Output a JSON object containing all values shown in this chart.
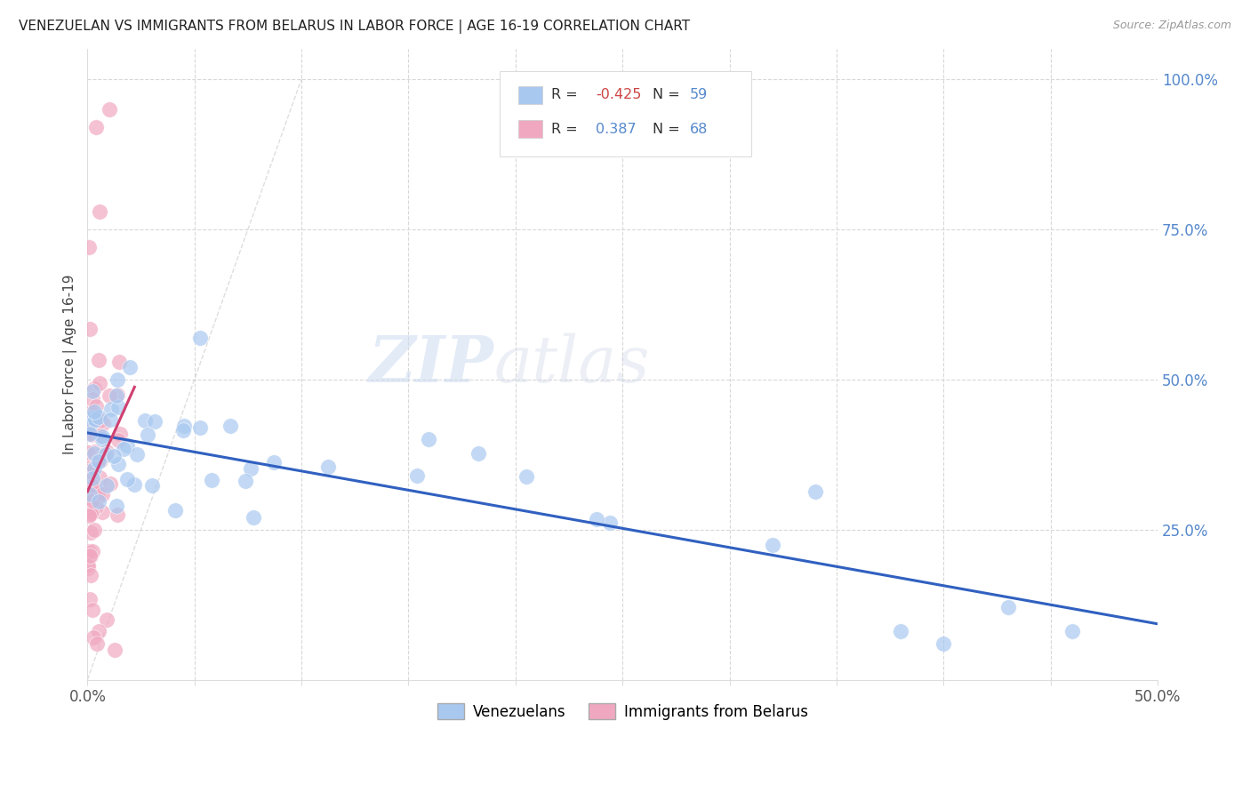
{
  "title": "VENEZUELAN VS IMMIGRANTS FROM BELARUS IN LABOR FORCE | AGE 16-19 CORRELATION CHART",
  "source": "Source: ZipAtlas.com",
  "ylabel": "In Labor Force | Age 16-19",
  "venezuelans_color": "#a8c8f0",
  "belarus_color": "#f0a8c0",
  "trendline_venezuelan_color": "#3060c0",
  "trendline_belarus_color": "#d04070",
  "diagonal_color": "#c8c8c8",
  "watermark_zip": "ZIP",
  "watermark_atlas": "atlas",
  "xlim": [
    0.0,
    0.5
  ],
  "ylim": [
    0.0,
    1.05
  ],
  "background_color": "#ffffff",
  "grid_color": "#d8d8d8",
  "ytick_color": "#5588cc",
  "ven_R": "-0.425",
  "ven_N": "59",
  "bel_R": "0.387",
  "bel_N": "68",
  "legend_R_color": "#cc4444",
  "legend_N_color": "#5588cc"
}
